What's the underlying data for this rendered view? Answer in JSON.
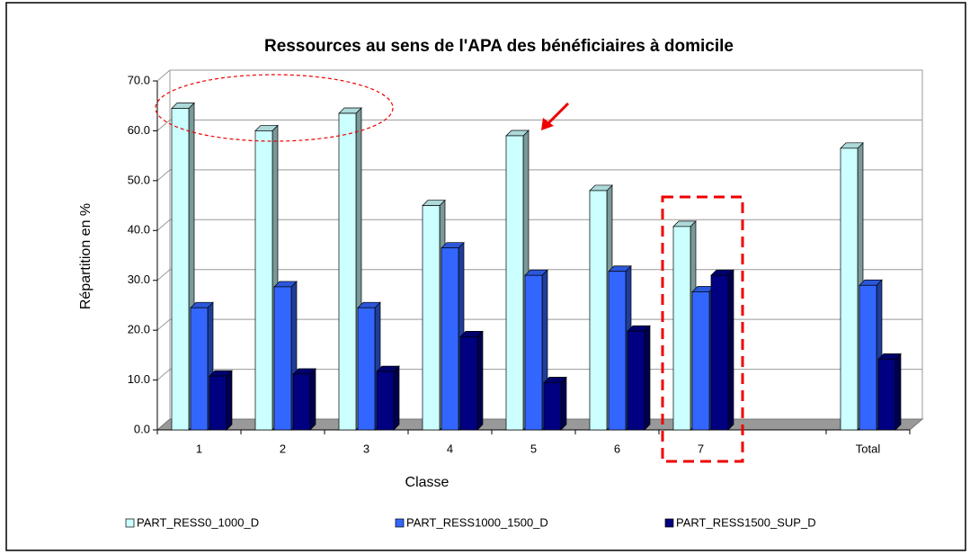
{
  "chart_data": {
    "type": "bar",
    "title": "Ressources au sens de l'APA des bénéficiaires à domicile",
    "y_label": "Répartition en %",
    "x_label": "Classe",
    "categories": [
      "1",
      "2",
      "3",
      "4",
      "5",
      "6",
      "7",
      null,
      "Total"
    ],
    "series": [
      {
        "name": "PART_RESS0_1000_D",
        "color": "#ccffff",
        "values": [
          64.5,
          60,
          63.5,
          45,
          59,
          48,
          40.8,
          null,
          56.5
        ]
      },
      {
        "name": "PART_RESS1000_1500_D",
        "color": "#3366ff",
        "values": [
          24.5,
          28.7,
          24.5,
          36.5,
          31,
          31.8,
          27.7,
          null,
          29
        ]
      },
      {
        "name": "PART_RESS1500_SUP_D",
        "color": "#000080",
        "values": [
          10.8,
          11.2,
          11.7,
          18.7,
          9.5,
          19.8,
          31,
          null,
          14.2
        ]
      }
    ],
    "ylim": [
      0,
      70
    ],
    "yticks": [
      {
        "value": 0,
        "label": "0.0"
      },
      {
        "value": 10,
        "label": "10.0"
      },
      {
        "value": 20,
        "label": "20.0"
      },
      {
        "value": 30,
        "label": "30.0"
      },
      {
        "value": 40,
        "label": "40.0"
      },
      {
        "value": 50,
        "label": "50.0"
      },
      {
        "value": 60,
        "label": "60.0"
      },
      {
        "value": 70,
        "label": "70.0"
      }
    ],
    "grid": true,
    "legend": "bottom"
  }
}
